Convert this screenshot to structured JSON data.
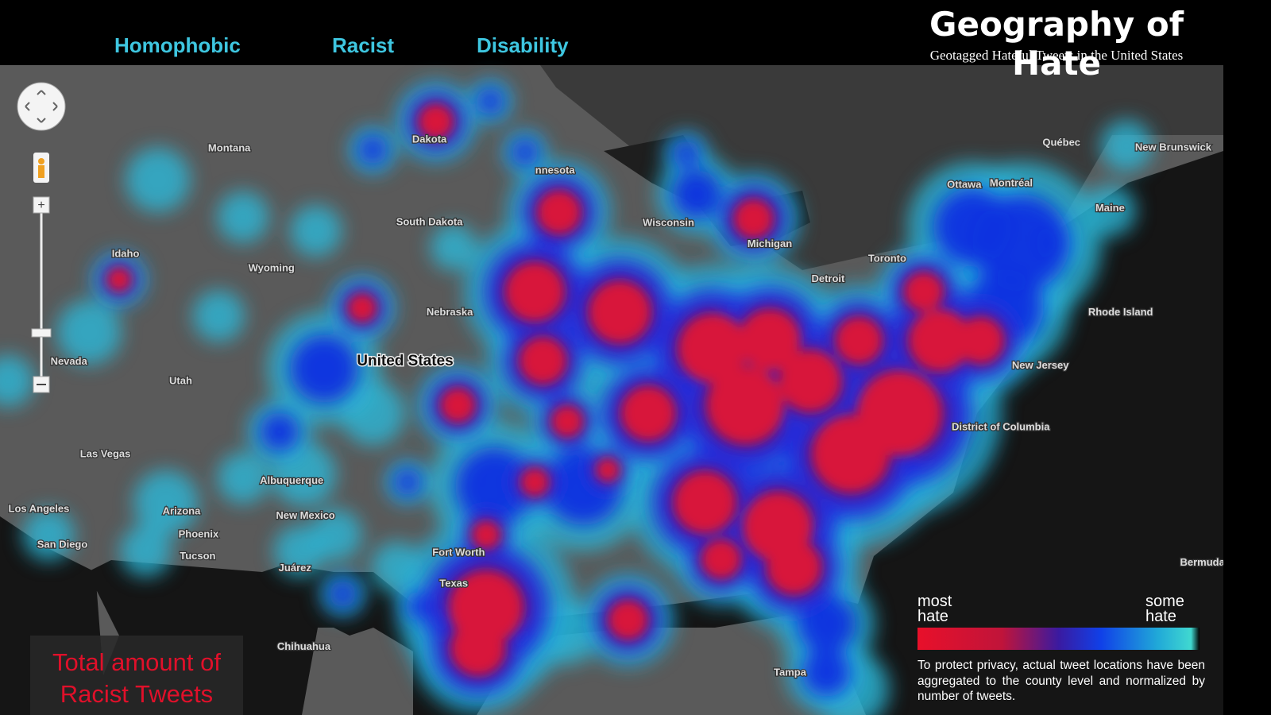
{
  "tabs": [
    "Homophobic",
    "Racist",
    "Disability"
  ],
  "header": {
    "title": "Geography of Hate",
    "subtitle": "Geotagged Hateful Tweets in the United States"
  },
  "map_labels": [
    "Montana",
    "Dakota",
    "nnesota",
    "South Dakota",
    "Idaho",
    "Wyoming",
    "Wisconsin",
    "Michigan",
    "Nebraska",
    "United States",
    "Nevada",
    "Utah",
    "Las Vegas",
    "Albuquerque",
    "Arizona",
    "Phoenix",
    "Tucson",
    "Los Angeles",
    "San Diego",
    "New Mexico",
    "Juárez",
    "Chihuahua",
    "Texas",
    "Québec",
    "Ottawa",
    "Montréal",
    "New Brunswick",
    "Maine",
    "Toronto",
    "Detroit",
    "New Jersey",
    "Rhode Island",
    "District of Columbia",
    "Bermuda",
    "Tampa",
    "Fort Worth"
  ],
  "legend": {
    "high": "most hate",
    "low": "some hate",
    "note": "To protect privacy, actual tweet locations have been aggregated to the county level and normalized by number of tweets."
  },
  "caption": "Total amount of Racist Tweets"
}
